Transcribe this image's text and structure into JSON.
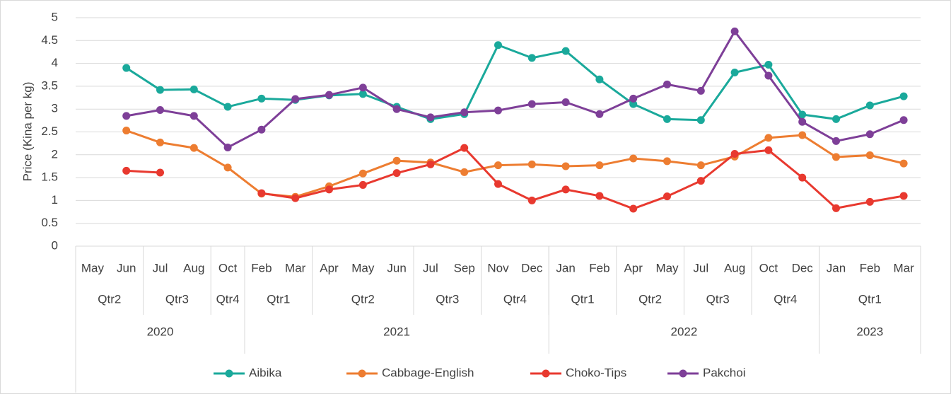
{
  "chart_data": {
    "type": "line",
    "y_axis_label": "Price (Kina per kg)",
    "categories": [
      "May",
      "Jun",
      "Jul",
      "Aug",
      "Oct",
      "Feb",
      "Mar",
      "Apr",
      "May",
      "Jun",
      "Jul",
      "Sep",
      "Nov",
      "Dec",
      "Jan",
      "Feb",
      "Apr",
      "May",
      "Jul",
      "Aug",
      "Oct",
      "Dec",
      "Jan",
      "Feb",
      "Mar"
    ],
    "quarters": [
      "Qtr2",
      "Qtr2",
      "Qtr3",
      "Qtr3",
      "Qtr4",
      "Qtr1",
      "Qtr1",
      "Qtr2",
      "Qtr2",
      "Qtr2",
      "Qtr3",
      "Qtr3",
      "Qtr4",
      "Qtr4",
      "Qtr1",
      "Qtr1",
      "Qtr2",
      "Qtr2",
      "Qtr3",
      "Qtr3",
      "Qtr4",
      "Qtr4",
      "Qtr1",
      "Qtr1",
      "Qtr1"
    ],
    "years": [
      "2020",
      "2020",
      "2020",
      "2020",
      "2020",
      "2021",
      "2021",
      "2021",
      "2021",
      "2021",
      "2021",
      "2021",
      "2021",
      "2021",
      "2022",
      "2022",
      "2022",
      "2022",
      "2022",
      "2022",
      "2022",
      "2022",
      "2023",
      "2023",
      "2023"
    ],
    "series": [
      {
        "name": "Aibika",
        "color": "#1aa99b",
        "values": [
          null,
          3.9,
          3.42,
          3.43,
          3.05,
          3.23,
          3.2,
          3.3,
          3.33,
          3.05,
          2.78,
          2.89,
          4.4,
          4.12,
          4.27,
          3.65,
          3.11,
          2.78,
          2.76,
          3.8,
          3.97,
          2.88,
          2.78,
          3.08,
          3.28
        ]
      },
      {
        "name": "Cabbage-English",
        "color": "#ed7d31",
        "values": [
          null,
          2.53,
          2.27,
          2.15,
          1.72,
          1.15,
          1.08,
          1.31,
          1.59,
          1.87,
          1.83,
          1.62,
          1.77,
          1.79,
          1.75,
          1.77,
          1.92,
          1.86,
          1.77,
          1.96,
          2.37,
          2.43,
          1.95,
          1.99,
          1.81
        ]
      },
      {
        "name": "Choko-Tips",
        "color": "#e8392f",
        "values": [
          null,
          1.65,
          1.61,
          null,
          null,
          1.16,
          1.05,
          1.24,
          1.34,
          1.6,
          1.79,
          2.15,
          1.36,
          1.0,
          1.24,
          1.1,
          0.82,
          1.09,
          1.43,
          2.02,
          2.1,
          1.5,
          0.83,
          0.97,
          1.1
        ]
      },
      {
        "name": "Pakchoi",
        "color": "#7e3f98",
        "values": [
          null,
          2.85,
          2.98,
          2.85,
          2.16,
          2.55,
          3.22,
          3.31,
          3.47,
          3.0,
          2.82,
          2.93,
          2.97,
          3.11,
          3.15,
          2.89,
          3.23,
          3.54,
          3.4,
          4.7,
          3.73,
          2.72,
          2.3,
          2.45,
          2.76
        ]
      }
    ],
    "ylim": [
      0,
      5
    ],
    "yticks": [
      0,
      0.5,
      1,
      1.5,
      2,
      2.5,
      3,
      3.5,
      4,
      4.5,
      5
    ],
    "grid": true,
    "legend": "bottom"
  }
}
